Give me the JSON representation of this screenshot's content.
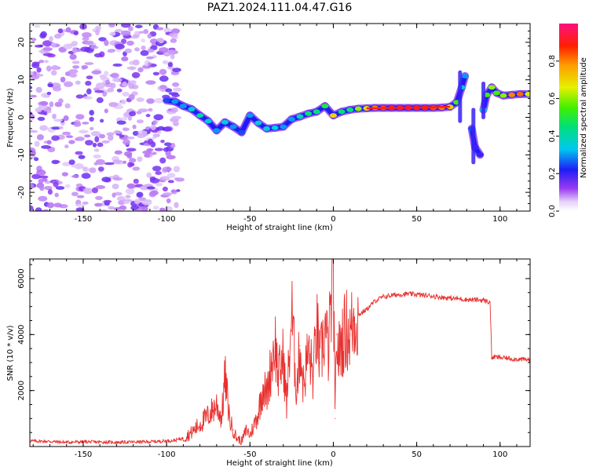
{
  "title": "PAZ1.2024.111.04.47.G16",
  "chart_data": [
    {
      "type": "heatmap",
      "xlabel": "Height of straight line (km)",
      "ylabel": "Frequency (Hz)",
      "xlim": [
        -182,
        118
      ],
      "ylim": [
        -25,
        25
      ],
      "x_ticks": [
        -150,
        -100,
        -50,
        0,
        50,
        100
      ],
      "y_ticks": [
        -20,
        -10,
        0,
        10,
        20
      ],
      "x_tick_labels": [
        "-150",
        "-100",
        "-50",
        "0",
        "50",
        "100"
      ],
      "y_tick_labels": [
        "-20",
        "-10",
        "0",
        "10",
        "20"
      ],
      "colorbar": {
        "label": "Normalized spectral amplitude",
        "range": [
          0,
          1
        ],
        "ticks": [
          "0.0",
          "0.2",
          "0.4",
          "0.6",
          "0.8"
        ]
      },
      "noise_region": {
        "x_range": [
          -182,
          -92
        ],
        "y_range": [
          -25,
          25
        ],
        "amplitude": 0.1
      },
      "ridge": [
        {
          "x": -100,
          "f": 4.5,
          "a": 0.25
        },
        {
          "x": -95,
          "f": 4.2,
          "a": 0.3
        },
        {
          "x": -90,
          "f": 3.0,
          "a": 0.3
        },
        {
          "x": -85,
          "f": 2.2,
          "a": 0.35
        },
        {
          "x": -80,
          "f": 0.5,
          "a": 0.4
        },
        {
          "x": -75,
          "f": -1.0,
          "a": 0.35
        },
        {
          "x": -70,
          "f": -3.5,
          "a": 0.3
        },
        {
          "x": -65,
          "f": -1.3,
          "a": 0.35
        },
        {
          "x": -60,
          "f": -2.5,
          "a": 0.3
        },
        {
          "x": -55,
          "f": -4.0,
          "a": 0.25
        },
        {
          "x": -50,
          "f": 0.5,
          "a": 0.3
        },
        {
          "x": -45,
          "f": -1.5,
          "a": 0.35
        },
        {
          "x": -40,
          "f": -3.0,
          "a": 0.35
        },
        {
          "x": -35,
          "f": -2.8,
          "a": 0.35
        },
        {
          "x": -30,
          "f": -2.5,
          "a": 0.3
        },
        {
          "x": -25,
          "f": -0.5,
          "a": 0.3
        },
        {
          "x": -20,
          "f": 0.2,
          "a": 0.4
        },
        {
          "x": -15,
          "f": 1.0,
          "a": 0.45
        },
        {
          "x": -10,
          "f": 1.5,
          "a": 0.45
        },
        {
          "x": -5,
          "f": 3.0,
          "a": 0.5
        },
        {
          "x": 0,
          "f": 0.5,
          "a": 0.7
        },
        {
          "x": 5,
          "f": 1.5,
          "a": 0.45
        },
        {
          "x": 10,
          "f": 2.0,
          "a": 0.45
        },
        {
          "x": 15,
          "f": 2.3,
          "a": 0.6
        },
        {
          "x": 20,
          "f": 2.4,
          "a": 0.7
        },
        {
          "x": 25,
          "f": 2.5,
          "a": 0.8
        },
        {
          "x": 30,
          "f": 2.5,
          "a": 0.85
        },
        {
          "x": 35,
          "f": 2.5,
          "a": 0.9
        },
        {
          "x": 40,
          "f": 2.5,
          "a": 0.92
        },
        {
          "x": 45,
          "f": 2.5,
          "a": 0.92
        },
        {
          "x": 50,
          "f": 2.5,
          "a": 0.9
        },
        {
          "x": 55,
          "f": 2.5,
          "a": 0.88
        },
        {
          "x": 60,
          "f": 2.5,
          "a": 0.85
        },
        {
          "x": 65,
          "f": 2.6,
          "a": 0.8
        },
        {
          "x": 70,
          "f": 2.8,
          "a": 0.7
        },
        {
          "x": 74,
          "f": 4.0,
          "a": 0.55
        },
        {
          "x": 77,
          "f": 8.0,
          "a": 0.35
        },
        {
          "x": 79,
          "f": 11.0,
          "a": 0.3
        },
        {
          "x": 83,
          "f": -3.0,
          "a": 0.25
        },
        {
          "x": 85,
          "f": -8.0,
          "a": 0.2
        },
        {
          "x": 88,
          "f": -10.0,
          "a": 0.2
        },
        {
          "x": 90,
          "f": 2.0,
          "a": 0.35
        },
        {
          "x": 92,
          "f": 6.0,
          "a": 0.55
        },
        {
          "x": 95,
          "f": 8.0,
          "a": 0.6
        },
        {
          "x": 98,
          "f": 6.5,
          "a": 0.55
        },
        {
          "x": 102,
          "f": 5.8,
          "a": 0.6
        },
        {
          "x": 107,
          "f": 6.0,
          "a": 0.8
        },
        {
          "x": 112,
          "f": 6.2,
          "a": 0.82
        },
        {
          "x": 117,
          "f": 6.2,
          "a": 0.65
        }
      ]
    },
    {
      "type": "line",
      "xlabel": "Height of straight line (km)",
      "ylabel": "SNR (10 * v/v)",
      "xlim": [
        -182,
        118
      ],
      "ylim": [
        0,
        6700
      ],
      "x_ticks": [
        -150,
        -100,
        -50,
        0,
        50,
        100
      ],
      "y_ticks": [
        2000,
        4000,
        6000
      ],
      "x_tick_labels": [
        "-150",
        "-100",
        "-50",
        "0",
        "50",
        "100"
      ],
      "y_tick_labels": [
        "2000",
        "4000",
        "6000"
      ],
      "color": "#e8302e",
      "series": [
        {
          "x": [
            -182,
            -170,
            -160,
            -150,
            -140,
            -130,
            -120,
            -110,
            -100,
            -95,
            -90,
            -85,
            -80,
            -75,
            -70,
            -67,
            -65,
            -62,
            -60,
            -58,
            -55,
            -52,
            -50,
            -48,
            -45,
            -42,
            -40,
            -38,
            -35,
            -33,
            -30,
            -28,
            -25,
            -22,
            -20,
            -18,
            -15,
            -12,
            -10,
            -8,
            -5,
            -3,
            -1,
            0,
            1,
            2,
            3,
            5,
            8,
            10,
            12,
            15,
            20,
            25,
            30,
            35,
            40,
            45,
            50,
            55,
            60,
            65,
            70,
            75,
            80,
            85,
            90,
            94,
            95,
            96,
            100,
            105,
            110,
            118
          ],
          "y": [
            200,
            180,
            150,
            170,
            160,
            150,
            160,
            170,
            200,
            220,
            300,
            500,
            800,
            1100,
            1500,
            1000,
            2500,
            900,
            600,
            300,
            200,
            600,
            400,
            700,
            1200,
            2200,
            1800,
            2600,
            3800,
            2500,
            3200,
            1500,
            4800,
            2000,
            3600,
            2200,
            3400,
            2500,
            4300,
            3000,
            4200,
            3400,
            5300,
            6700,
            1000,
            4000,
            3200,
            3800,
            4200,
            4000,
            4500,
            4700,
            4900,
            5200,
            5350,
            5400,
            5430,
            5450,
            5430,
            5400,
            5370,
            5330,
            5300,
            5280,
            5250,
            5240,
            5230,
            5150,
            3150,
            3200,
            3180,
            3150,
            3120,
            3100
          ]
        }
      ]
    }
  ]
}
